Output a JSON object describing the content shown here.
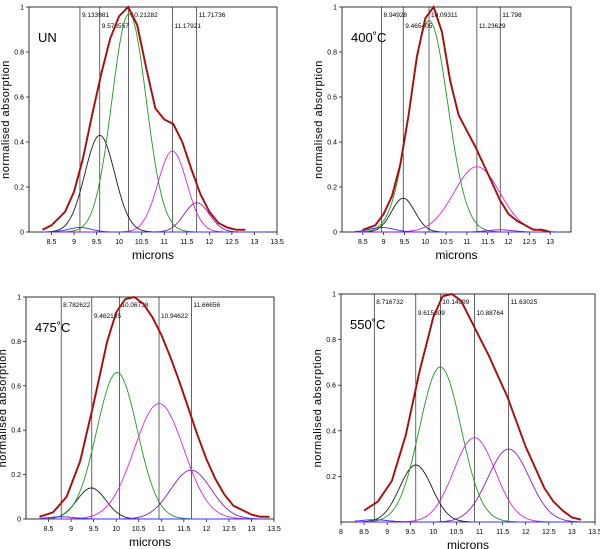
{
  "chart_data": [
    {
      "type": "line",
      "panel_label": "UN",
      "xlabel": "microns",
      "ylabel": "normalised absorption",
      "xlim": [
        8,
        13.5
      ],
      "ylim": [
        0,
        1
      ],
      "xticks": [
        "8.5",
        "9",
        "9.5",
        "10",
        "10.5",
        "11",
        "11.5",
        "12",
        "12.5",
        "13",
        "13.5"
      ],
      "yticks": [
        "0",
        "0.2",
        "0.4",
        "0.6",
        "0.8",
        "1"
      ],
      "vlines": [
        {
          "x": 9.13,
          "label": "9.133981"
        },
        {
          "x": 9.57,
          "label": "9.573557"
        },
        {
          "x": 10.21,
          "label": "10.21282"
        },
        {
          "x": 11.18,
          "label": "11.17921"
        },
        {
          "x": 11.72,
          "label": "11.71736"
        }
      ],
      "components": [
        {
          "color": "#1a1a1a",
          "center": 9.57,
          "height": 0.43,
          "width": 0.33
        },
        {
          "color": "#1e9a1e",
          "center": 10.22,
          "height": 0.97,
          "width": 0.38
        },
        {
          "color": "#e020e0",
          "center": 11.18,
          "height": 0.36,
          "width": 0.32
        },
        {
          "color": "#8a1ac8",
          "center": 11.72,
          "height": 0.13,
          "width": 0.28
        },
        {
          "color": "#3030ff",
          "center": 9.13,
          "height": 0.02,
          "width": 0.25
        }
      ],
      "envelope": {
        "color": "#c01818",
        "x": [
          8.3,
          8.5,
          8.8,
          9.0,
          9.2,
          9.4,
          9.6,
          9.8,
          10.0,
          10.2,
          10.4,
          10.6,
          10.8,
          11.0,
          11.2,
          11.4,
          11.6,
          11.8,
          12.0,
          12.2,
          12.4,
          12.6,
          12.8
        ],
        "y": [
          0.01,
          0.03,
          0.09,
          0.18,
          0.33,
          0.52,
          0.7,
          0.86,
          0.96,
          1.0,
          0.92,
          0.73,
          0.55,
          0.5,
          0.48,
          0.4,
          0.28,
          0.17,
          0.09,
          0.04,
          0.02,
          0.01,
          0.01
        ]
      }
    },
    {
      "type": "line",
      "panel_label": "400˚C",
      "xlabel": "microns",
      "ylabel": "normalised absorption",
      "xlim": [
        8,
        13.5
      ],
      "ylim": [
        0,
        1
      ],
      "xticks": [
        "8.5",
        "9",
        "9.5",
        "10",
        "10.5",
        "11",
        "11.5",
        "12",
        "12.5",
        "13"
      ],
      "yticks": [
        "0",
        "0.2",
        "0.4",
        "0.6",
        "0.8",
        "1"
      ],
      "vlines": [
        {
          "x": 8.95,
          "label": "8.94928"
        },
        {
          "x": 9.47,
          "label": "9.465405"
        },
        {
          "x": 10.09,
          "label": "10.09311"
        },
        {
          "x": 11.24,
          "label": "11.23629"
        },
        {
          "x": 11.8,
          "label": "11.798"
        }
      ],
      "components": [
        {
          "color": "#1a1a1a",
          "center": 9.47,
          "height": 0.15,
          "width": 0.28
        },
        {
          "color": "#1e9a1e",
          "center": 10.09,
          "height": 0.94,
          "width": 0.45
        },
        {
          "color": "#e020e0",
          "center": 11.24,
          "height": 0.29,
          "width": 0.55
        },
        {
          "color": "#8a1ac8",
          "center": 11.8,
          "height": 0.01,
          "width": 0.3
        },
        {
          "color": "#3030ff",
          "center": 8.95,
          "height": 0.02,
          "width": 0.3
        }
      ],
      "envelope": {
        "color": "#c01818",
        "x": [
          8.5,
          8.8,
          9.0,
          9.2,
          9.4,
          9.6,
          9.8,
          10.0,
          10.2,
          10.4,
          10.6,
          10.8,
          11.0,
          11.2,
          11.4,
          11.6,
          11.8,
          12.0,
          12.2,
          12.4,
          12.6,
          12.8,
          13.0
        ],
        "y": [
          0.01,
          0.03,
          0.08,
          0.16,
          0.3,
          0.52,
          0.78,
          0.95,
          1.0,
          0.89,
          0.67,
          0.52,
          0.45,
          0.38,
          0.3,
          0.22,
          0.14,
          0.08,
          0.05,
          0.03,
          0.01,
          0.01,
          0.0
        ]
      }
    },
    {
      "type": "line",
      "panel_label": "475˚C",
      "xlabel": "microns",
      "ylabel": "normalised absorption",
      "xlim": [
        8,
        13.5
      ],
      "ylim": [
        0,
        1
      ],
      "xticks": [
        "8.5",
        "9",
        "9.5",
        "10",
        "10.5",
        "11",
        "11.5",
        "12",
        "12.5",
        "13",
        "13.5"
      ],
      "yticks": [
        "0",
        "0.2",
        "0.4",
        "0.6",
        "0.8",
        "1"
      ],
      "vlines": [
        {
          "x": 8.78,
          "label": "8.782622"
        },
        {
          "x": 9.46,
          "label": "9.462185"
        },
        {
          "x": 10.07,
          "label": "10.06738"
        },
        {
          "x": 10.95,
          "label": "10.94622"
        },
        {
          "x": 11.67,
          "label": "11.66656"
        }
      ],
      "components": [
        {
          "color": "#1a1a1a",
          "center": 9.45,
          "height": 0.14,
          "width": 0.32
        },
        {
          "color": "#1e9a1e",
          "center": 10.02,
          "height": 0.66,
          "width": 0.45
        },
        {
          "color": "#e020e0",
          "center": 10.95,
          "height": 0.52,
          "width": 0.55
        },
        {
          "color": "#8a1ac8",
          "center": 11.66,
          "height": 0.22,
          "width": 0.45
        },
        {
          "color": "#3030ff",
          "center": 8.78,
          "height": 0.01,
          "width": 0.3
        }
      ],
      "envelope": {
        "color": "#c01818",
        "x": [
          8.3,
          8.6,
          8.9,
          9.2,
          9.5,
          9.8,
          10.0,
          10.2,
          10.4,
          10.6,
          10.8,
          11.0,
          11.2,
          11.4,
          11.6,
          11.8,
          12.0,
          12.2,
          12.4,
          12.6,
          12.8,
          13.0,
          13.2,
          13.4
        ],
        "y": [
          0.01,
          0.03,
          0.1,
          0.26,
          0.52,
          0.8,
          0.93,
          0.99,
          1.0,
          0.97,
          0.91,
          0.83,
          0.73,
          0.62,
          0.5,
          0.38,
          0.27,
          0.18,
          0.11,
          0.06,
          0.04,
          0.02,
          0.01,
          0.01
        ]
      }
    },
    {
      "type": "line",
      "panel_label": "550˚C",
      "xlabel": "microns",
      "ylabel": "normalised absorption",
      "xlim": [
        8,
        13.5
      ],
      "ylim": [
        0,
        1
      ],
      "xticks": [
        "8",
        "8.5",
        "9",
        "9.5",
        "10",
        "10.5",
        "11",
        "11.5",
        "12",
        "12.5",
        "13",
        "13.5"
      ],
      "yticks": [
        "0.2",
        "0.4",
        "0.6",
        "0.8",
        "1"
      ],
      "vlines": [
        {
          "x": 8.72,
          "label": "8.716732"
        },
        {
          "x": 9.62,
          "label": "9.615809"
        },
        {
          "x": 10.15,
          "label": "10.14999"
        },
        {
          "x": 10.89,
          "label": "10.88764"
        },
        {
          "x": 11.63,
          "label": "11.63025"
        }
      ],
      "components": [
        {
          "color": "#1a1a1a",
          "center": 9.62,
          "height": 0.25,
          "width": 0.35
        },
        {
          "color": "#1e9a1e",
          "center": 10.15,
          "height": 0.68,
          "width": 0.45
        },
        {
          "color": "#e020e0",
          "center": 10.89,
          "height": 0.37,
          "width": 0.45
        },
        {
          "color": "#8a1ac8",
          "center": 11.63,
          "height": 0.32,
          "width": 0.45
        },
        {
          "color": "#3030ff",
          "center": 8.72,
          "height": 0.01,
          "width": 0.3
        }
      ],
      "envelope": {
        "color": "#c01818",
        "x": [
          8.5,
          8.8,
          9.1,
          9.4,
          9.7,
          10.0,
          10.2,
          10.4,
          10.6,
          10.8,
          11.0,
          11.2,
          11.4,
          11.6,
          11.8,
          12.0,
          12.2,
          12.4,
          12.6,
          12.8,
          13.0,
          13.2
        ],
        "y": [
          0.05,
          0.09,
          0.18,
          0.38,
          0.66,
          0.9,
          0.99,
          1.0,
          0.97,
          0.89,
          0.81,
          0.73,
          0.64,
          0.55,
          0.44,
          0.33,
          0.24,
          0.15,
          0.09,
          0.05,
          0.02,
          0.01
        ]
      }
    }
  ]
}
